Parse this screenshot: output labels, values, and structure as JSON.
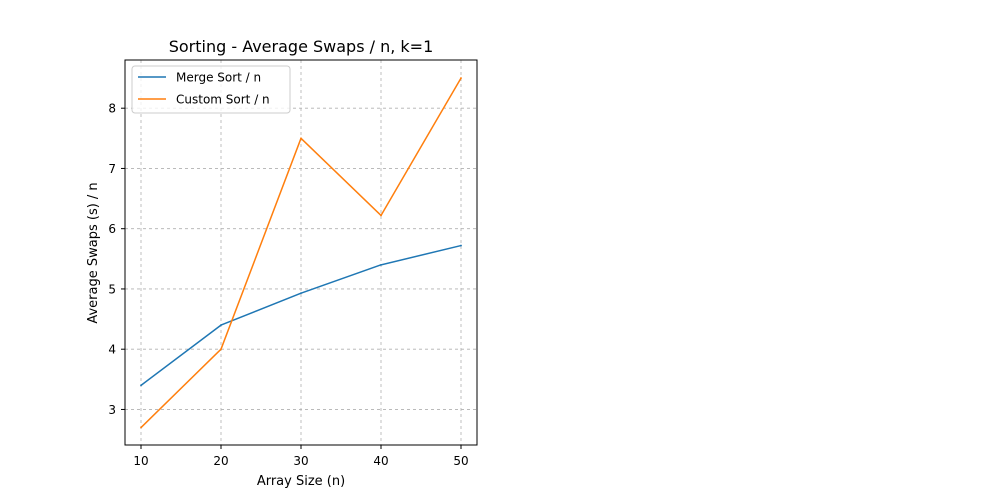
{
  "chart_data": {
    "type": "line",
    "title": "Sorting - Average Swaps / n, k=1",
    "xlabel": "Array Size (n)",
    "ylabel": "Average Swaps (s) / n",
    "x": [
      10,
      20,
      30,
      40,
      50
    ],
    "xticks": [
      "10",
      "20",
      "30",
      "40",
      "50"
    ],
    "yticks": [
      "3",
      "4",
      "5",
      "6",
      "7",
      "8"
    ],
    "xlim": [
      8,
      52
    ],
    "ylim": [
      2.41,
      8.8
    ],
    "grid": true,
    "legend_position": "upper-left",
    "series": [
      {
        "name": "Merge Sort / n",
        "color": "#1f77b4",
        "values": [
          3.4,
          4.4,
          4.93,
          5.4,
          5.72
        ]
      },
      {
        "name": "Custom Sort / n",
        "color": "#ff7f0e",
        "values": [
          2.7,
          4.0,
          7.5,
          6.22,
          8.5
        ]
      }
    ]
  }
}
